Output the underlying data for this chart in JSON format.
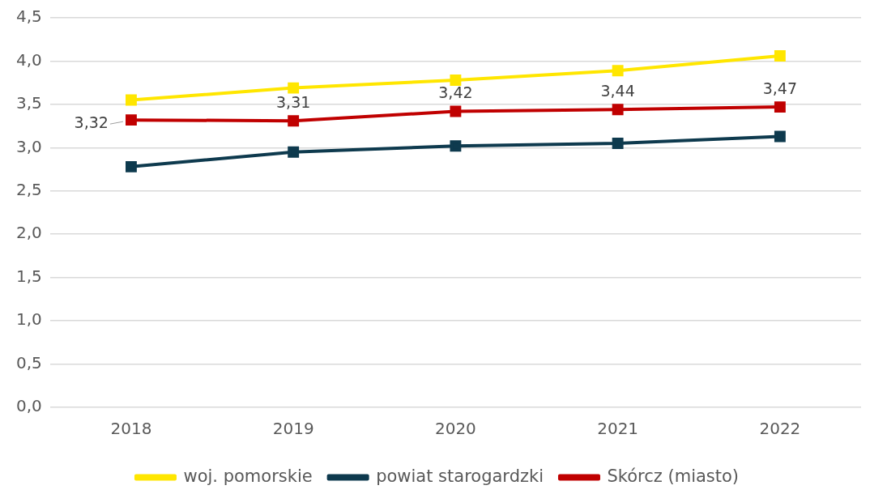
{
  "chart_data": {
    "type": "line",
    "categories": [
      "2018",
      "2019",
      "2020",
      "2021",
      "2022"
    ],
    "series": [
      {
        "name": "woj. pomorskie",
        "color": "#ffe600",
        "values": [
          3.55,
          3.69,
          3.78,
          3.89,
          4.06
        ]
      },
      {
        "name": "powiat starogardzki",
        "color": "#0e3a4e",
        "values": [
          2.78,
          2.95,
          3.02,
          3.05,
          3.13
        ]
      },
      {
        "name": "Skórcz (miasto)",
        "color": "#c00000",
        "values": [
          3.32,
          3.31,
          3.42,
          3.44,
          3.47
        ],
        "value_labels": [
          "3,32",
          "3,31",
          "3,42",
          "3,44",
          "3,47"
        ]
      }
    ],
    "ylim": [
      0,
      4.5
    ],
    "yticks": [
      {
        "value": 0,
        "label": "0,0"
      },
      {
        "value": 0.5,
        "label": "0,5"
      },
      {
        "value": 1,
        "label": "1,0"
      },
      {
        "value": 1.5,
        "label": "1,5"
      },
      {
        "value": 2,
        "label": "2,0"
      },
      {
        "value": 2.5,
        "label": "2,5"
      },
      {
        "value": 3,
        "label": "3,0"
      },
      {
        "value": 3.5,
        "label": "3,5"
      },
      {
        "value": 4,
        "label": "4,0"
      },
      {
        "value": 4.5,
        "label": "4,5"
      }
    ],
    "grid": "y",
    "legend": "bottom",
    "marker": "square",
    "line_style": "solid"
  }
}
